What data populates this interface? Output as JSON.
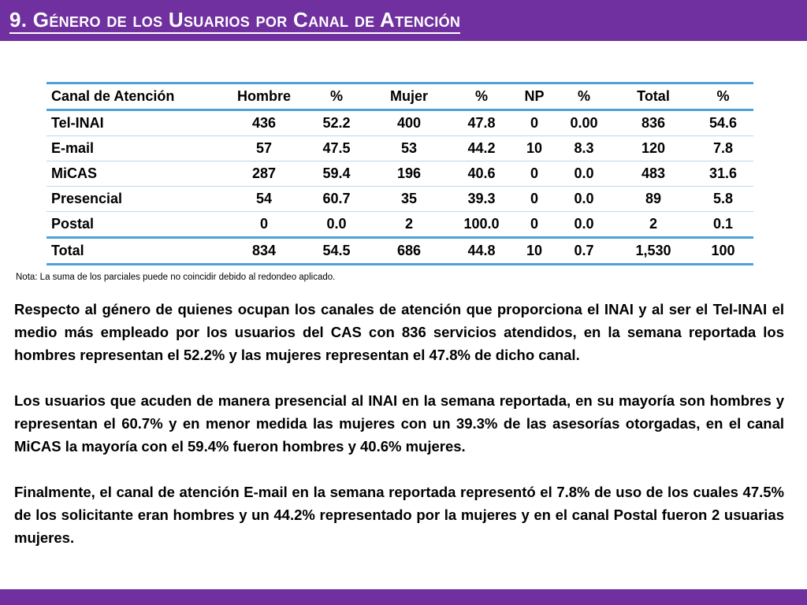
{
  "title": "9. Género de los Usuarios por Canal de Atención",
  "colors": {
    "accent": "#7030a0",
    "table_border": "#4f9fd8"
  },
  "table": {
    "headers": [
      "Canal de Atención",
      "Hombre",
      "%",
      "Mujer",
      "%",
      "NP",
      "%",
      "Total",
      "%"
    ],
    "rows": [
      [
        "Tel-INAI",
        "436",
        "52.2",
        "400",
        "47.8",
        "0",
        "0.00",
        "836",
        "54.6"
      ],
      [
        "E-mail",
        "57",
        "47.5",
        "53",
        "44.2",
        "10",
        "8.3",
        "120",
        "7.8"
      ],
      [
        "MiCAS",
        "287",
        "59.4",
        "196",
        "40.6",
        "0",
        "0.0",
        "483",
        "31.6"
      ],
      [
        "Presencial",
        "54",
        "60.7",
        "35",
        "39.3",
        "0",
        "0.0",
        "89",
        "5.8"
      ],
      [
        "Postal",
        "0",
        "0.0",
        "2",
        "100.0",
        "0",
        "0.0",
        "2",
        "0.1"
      ]
    ],
    "total_row": [
      "Total",
      "834",
      "54.5",
      "686",
      "44.8",
      "10",
      "0.7",
      "1,530",
      "100"
    ]
  },
  "note": "Nota: La suma de los parciales puede no coincidir debido al redondeo aplicado.",
  "paragraphs": [
    "Respecto al género de quienes ocupan los canales de atención que proporciona el INAI y al ser el Tel-INAI el medio más empleado por los usuarios del CAS con 836 servicios atendidos, en la semana reportada los hombres representan el 52.2% y las mujeres representan el 47.8%  de dicho canal.",
    "Los usuarios que acuden de manera presencial al INAI en la semana reportada, en su mayoría son hombres y representan el 60.7% y en menor medida las mujeres con un 39.3% de las asesorías otorgadas, en el canal MiCAS  la mayoría con el 59.4% fueron hombres y  40.6% mujeres.",
    "Finalmente, el canal de atención E-mail en la semana reportada representó el 7.8% de uso de los cuales 47.5% de los solicitante eran hombres y un 44.2% representado por la mujeres y en el canal Postal  fueron 2 usuarias mujeres."
  ]
}
